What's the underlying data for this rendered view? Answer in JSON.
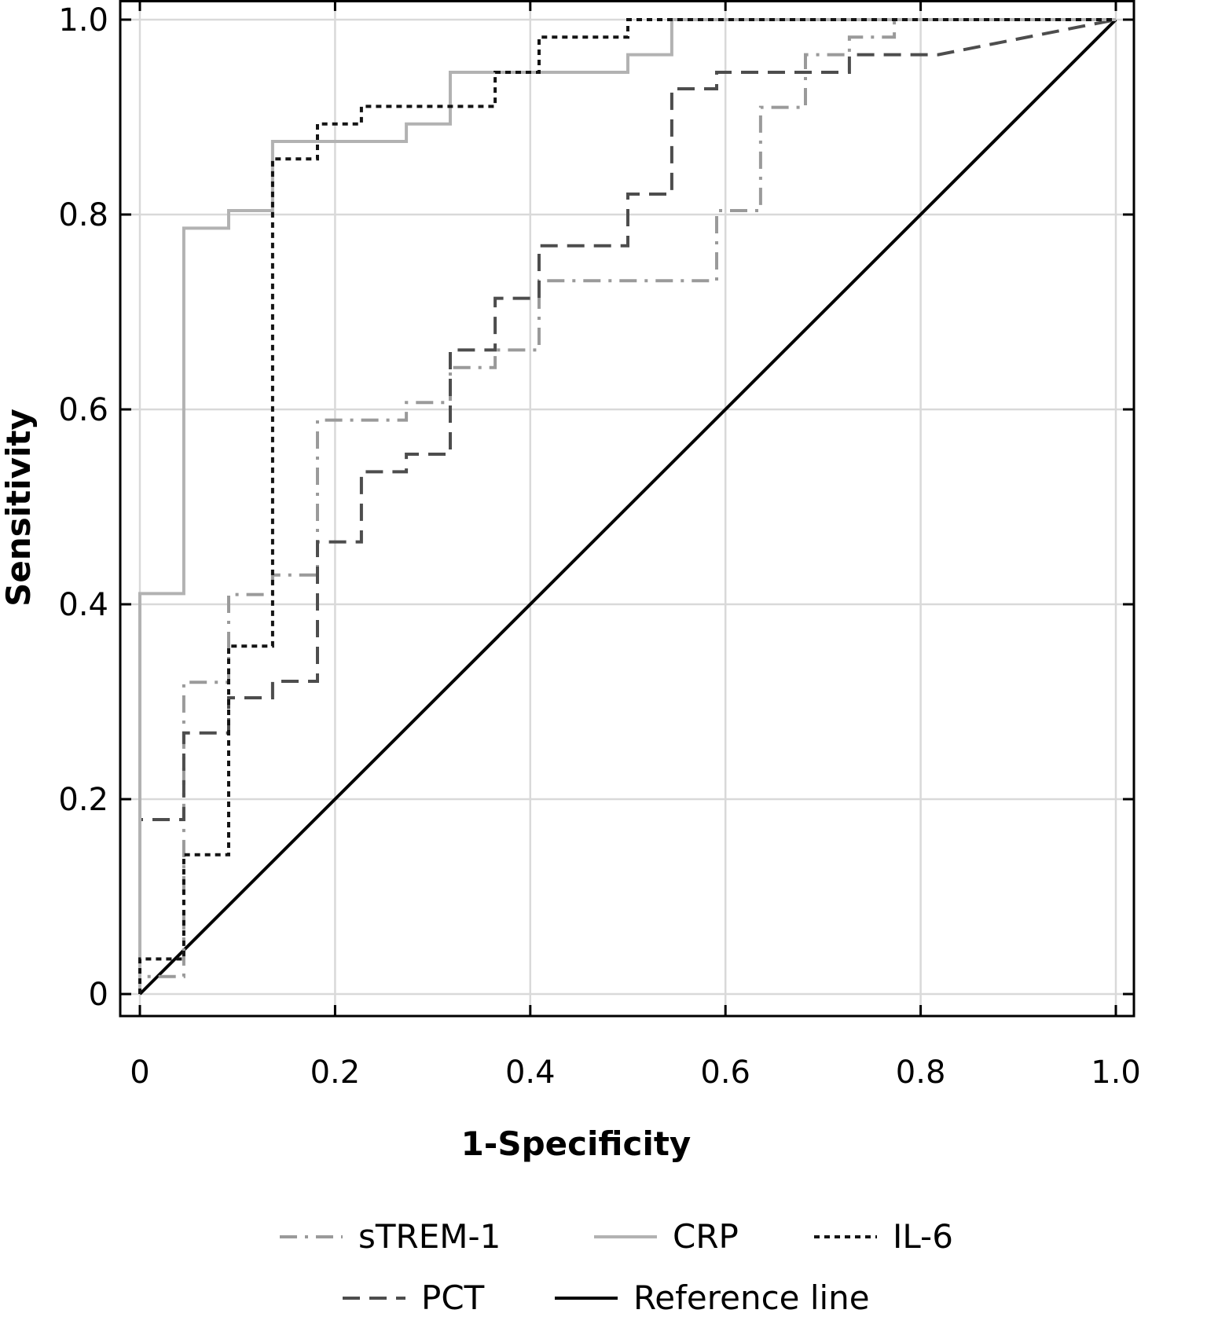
{
  "chart_data": {
    "type": "line",
    "title": "",
    "xlabel": "1-Specificity",
    "ylabel": "Sensitivity",
    "xlim": [
      0,
      1
    ],
    "ylim": [
      0,
      1
    ],
    "grid": true,
    "legend_position": "bottom",
    "x_ticks": [
      {
        "value": 0,
        "label": "0"
      },
      {
        "value": 0.2,
        "label": "0.2"
      },
      {
        "value": 0.4,
        "label": "0.4"
      },
      {
        "value": 0.6,
        "label": "0.6"
      },
      {
        "value": 0.8,
        "label": "0.8"
      },
      {
        "value": 1.0,
        "label": "1.0"
      }
    ],
    "y_ticks": [
      {
        "value": 0,
        "label": "0"
      },
      {
        "value": 0.2,
        "label": "0.2"
      },
      {
        "value": 0.4,
        "label": "0.4"
      },
      {
        "value": 0.6,
        "label": "0.6"
      },
      {
        "value": 0.8,
        "label": "0.8"
      },
      {
        "value": 1.0,
        "label": "1.0"
      }
    ],
    "series": [
      {
        "name": "sTREM-1",
        "id": "strem1",
        "color": "#9a9a9a",
        "style": "dashdot",
        "points": [
          [
            0,
            0
          ],
          [
            0,
            0.018
          ],
          [
            0.045,
            0.018
          ],
          [
            0.045,
            0.32
          ],
          [
            0.091,
            0.32
          ],
          [
            0.091,
            0.41
          ],
          [
            0.136,
            0.41
          ],
          [
            0.136,
            0.43
          ],
          [
            0.182,
            0.43
          ],
          [
            0.182,
            0.589
          ],
          [
            0.273,
            0.589
          ],
          [
            0.273,
            0.607
          ],
          [
            0.318,
            0.607
          ],
          [
            0.318,
            0.643
          ],
          [
            0.364,
            0.643
          ],
          [
            0.364,
            0.661
          ],
          [
            0.409,
            0.661
          ],
          [
            0.409,
            0.732
          ],
          [
            0.591,
            0.732
          ],
          [
            0.591,
            0.804
          ],
          [
            0.636,
            0.804
          ],
          [
            0.636,
            0.91
          ],
          [
            0.682,
            0.91
          ],
          [
            0.682,
            0.964
          ],
          [
            0.727,
            0.964
          ],
          [
            0.727,
            0.982
          ],
          [
            0.773,
            0.982
          ],
          [
            0.773,
            1.0
          ],
          [
            1.0,
            1.0
          ]
        ]
      },
      {
        "name": "CRP",
        "id": "crp",
        "color": "#b2b2b2",
        "style": "solid",
        "points": [
          [
            0,
            0
          ],
          [
            0,
            0.411
          ],
          [
            0.045,
            0.411
          ],
          [
            0.045,
            0.786
          ],
          [
            0.091,
            0.786
          ],
          [
            0.091,
            0.804
          ],
          [
            0.136,
            0.804
          ],
          [
            0.136,
            0.875
          ],
          [
            0.273,
            0.875
          ],
          [
            0.273,
            0.893
          ],
          [
            0.318,
            0.893
          ],
          [
            0.318,
            0.946
          ],
          [
            0.5,
            0.946
          ],
          [
            0.5,
            0.964
          ],
          [
            0.545,
            0.964
          ],
          [
            0.545,
            1.0
          ],
          [
            1.0,
            1.0
          ]
        ]
      },
      {
        "name": "IL-6",
        "id": "il6",
        "color": "#141414",
        "style": "dotted",
        "points": [
          [
            0,
            0
          ],
          [
            0,
            0.036
          ],
          [
            0.045,
            0.036
          ],
          [
            0.045,
            0.143
          ],
          [
            0.091,
            0.143
          ],
          [
            0.091,
            0.357
          ],
          [
            0.136,
            0.357
          ],
          [
            0.136,
            0.857
          ],
          [
            0.182,
            0.857
          ],
          [
            0.182,
            0.893
          ],
          [
            0.227,
            0.893
          ],
          [
            0.227,
            0.911
          ],
          [
            0.364,
            0.911
          ],
          [
            0.364,
            0.946
          ],
          [
            0.409,
            0.946
          ],
          [
            0.409,
            0.982
          ],
          [
            0.5,
            0.982
          ],
          [
            0.5,
            1.0
          ],
          [
            1.0,
            1.0
          ]
        ]
      },
      {
        "name": "PCT",
        "id": "pct",
        "color": "#4d4d4d",
        "style": "dashed",
        "points": [
          [
            0,
            0
          ],
          [
            0,
            0.179
          ],
          [
            0.045,
            0.179
          ],
          [
            0.045,
            0.268
          ],
          [
            0.091,
            0.268
          ],
          [
            0.091,
            0.304
          ],
          [
            0.136,
            0.304
          ],
          [
            0.136,
            0.321
          ],
          [
            0.182,
            0.321
          ],
          [
            0.182,
            0.464
          ],
          [
            0.227,
            0.464
          ],
          [
            0.227,
            0.536
          ],
          [
            0.273,
            0.536
          ],
          [
            0.273,
            0.554
          ],
          [
            0.318,
            0.554
          ],
          [
            0.318,
            0.661
          ],
          [
            0.364,
            0.661
          ],
          [
            0.364,
            0.714
          ],
          [
            0.409,
            0.714
          ],
          [
            0.409,
            0.768
          ],
          [
            0.5,
            0.768
          ],
          [
            0.5,
            0.821
          ],
          [
            0.545,
            0.821
          ],
          [
            0.545,
            0.929
          ],
          [
            0.591,
            0.929
          ],
          [
            0.591,
            0.946
          ],
          [
            0.727,
            0.946
          ],
          [
            0.727,
            0.964
          ],
          [
            0.818,
            0.964
          ],
          [
            1.0,
            1.0
          ]
        ]
      },
      {
        "name": "Reference line",
        "id": "reference",
        "color": "#000000",
        "style": "solid",
        "points": [
          [
            0,
            0
          ],
          [
            1,
            1
          ]
        ]
      }
    ]
  }
}
